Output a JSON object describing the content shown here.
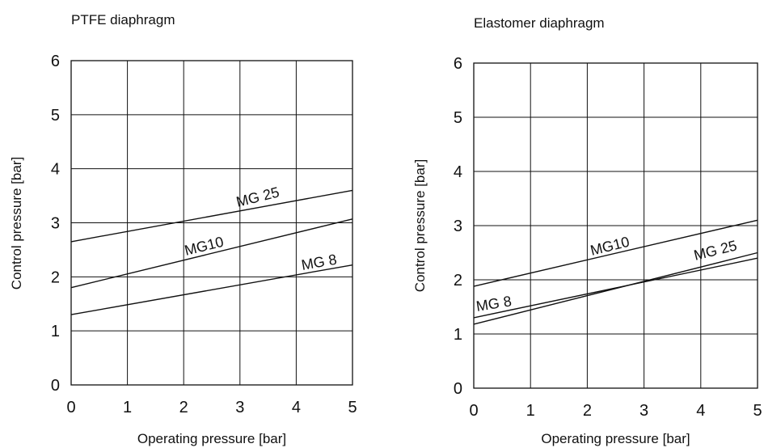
{
  "chart_data": [
    {
      "type": "line",
      "title": "PTFE diaphragm",
      "xlabel": "Operating pressure [bar]",
      "ylabel": "Control pressure [bar]",
      "xlim": [
        0,
        5
      ],
      "ylim": [
        0,
        6
      ],
      "x_ticks": [
        "0",
        "1",
        "2",
        "3",
        "4",
        "5"
      ],
      "y_ticks": [
        "0",
        "1",
        "2",
        "3",
        "4",
        "5",
        "6"
      ],
      "grid": true,
      "series": [
        {
          "name": "MG 25",
          "x": [
            0,
            5
          ],
          "y": [
            2.65,
            3.6
          ]
        },
        {
          "name": "MG10",
          "x": [
            0,
            5
          ],
          "y": [
            1.8,
            3.07
          ]
        },
        {
          "name": "MG 8",
          "x": [
            0,
            5
          ],
          "y": [
            1.3,
            2.22
          ]
        }
      ]
    },
    {
      "type": "line",
      "title": "Elastomer diaphragm",
      "xlabel": "Operating pressure [bar]",
      "ylabel": "Control pressure [bar]",
      "xlim": [
        0,
        5
      ],
      "ylim": [
        0,
        6
      ],
      "x_ticks": [
        "0",
        "1",
        "2",
        "3",
        "4",
        "5"
      ],
      "y_ticks": [
        "0",
        "1",
        "2",
        "3",
        "4",
        "5",
        "6"
      ],
      "grid": true,
      "series": [
        {
          "name": "MG10",
          "x": [
            0,
            5
          ],
          "y": [
            1.88,
            3.1
          ]
        },
        {
          "name": "MG 25",
          "x": [
            0,
            5
          ],
          "y": [
            1.18,
            2.5
          ]
        },
        {
          "name": "MG 8",
          "x": [
            0,
            5
          ],
          "y": [
            1.3,
            2.4
          ]
        }
      ]
    }
  ]
}
